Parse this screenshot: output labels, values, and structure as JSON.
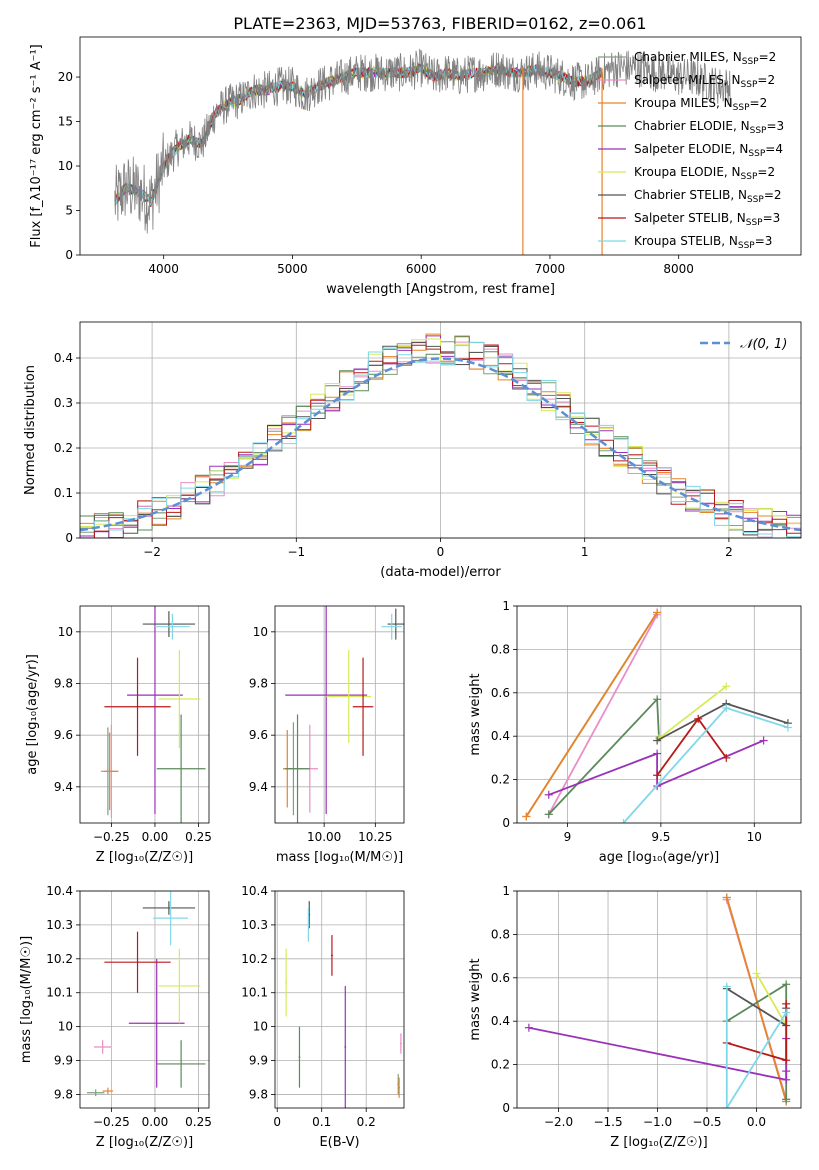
{
  "figure_title": "PLATE=2363, MJD=53763, FIBERID=0162, z=0.061",
  "models": [
    {
      "name": "Chabrier MILES",
      "nssp": "2",
      "color": "#7f9f7f"
    },
    {
      "name": "Salpeter MILES",
      "nssp": "2",
      "color": "#e88fc8"
    },
    {
      "name": "Kroupa MILES",
      "nssp": "2",
      "color": "#e8842a"
    },
    {
      "name": "Chabrier ELODIE",
      "nssp": "3",
      "color": "#5a8a5a"
    },
    {
      "name": "Salpeter ELODIE",
      "nssp": "4",
      "color": "#9a32b8"
    },
    {
      "name": "Kroupa ELODIE",
      "nssp": "2",
      "color": "#d8ea5a"
    },
    {
      "name": "Chabrier STELIB",
      "nssp": "2",
      "color": "#555555"
    },
    {
      "name": "Salpeter STELIB",
      "nssp": "3",
      "color": "#b81a1a"
    },
    {
      "name": "Kroupa STELIB",
      "nssp": "3",
      "color": "#7fd8e8"
    }
  ],
  "normal_label": "𝒩(0, 1)",
  "chart_data": [
    {
      "id": "spectrum",
      "type": "line",
      "xlabel": "wavelength [Angstrom, rest frame]",
      "ylabel": "Flux [f_λ10⁻¹⁷ erg cm⁻² s⁻¹ A⁻¹]",
      "xlim": [
        3350,
        8950
      ],
      "ylim": [
        0,
        24.5
      ],
      "xticks": [
        4000,
        5000,
        6000,
        7000,
        8000
      ],
      "yticks": [
        0,
        5,
        10,
        15,
        20
      ],
      "legend": "top-right",
      "continuum_x": [
        3620,
        3700,
        3800,
        3900,
        4000,
        4100,
        4200,
        4300,
        4400,
        4500,
        4600,
        4700,
        4800,
        4900,
        5000,
        5100,
        5200,
        5300,
        5400,
        5500,
        5600,
        5700,
        5800,
        5900,
        6000,
        6100,
        6200,
        6300,
        6400,
        6500,
        6600,
        6700,
        6800,
        6900,
        7000,
        7100,
        7200,
        7300,
        7400,
        7500,
        7600,
        7700,
        7800,
        7900,
        8000,
        8100,
        8200,
        8300,
        8400
      ],
      "continuum_y": [
        6.0,
        7.5,
        7.2,
        6.0,
        10.0,
        12.0,
        13.0,
        12.5,
        16.0,
        17.0,
        17.5,
        18.5,
        18.5,
        19.0,
        19.0,
        18.0,
        19.0,
        19.5,
        20.0,
        20.5,
        20.5,
        20.5,
        20.5,
        20.5,
        21.0,
        20.0,
        20.5,
        20.0,
        20.5,
        20.5,
        21.0,
        20.5,
        20.5,
        20.8,
        20.5,
        20.0,
        19.5,
        19.5,
        20.5,
        21.0,
        21.0,
        21.0,
        20.5,
        20.5,
        20.0,
        20.0,
        19.5,
        19.0,
        19.0
      ],
      "data_noise": 2.2,
      "models_end": 7400,
      "spikes": [
        {
          "x": 6790,
          "color": "#e8842a"
        },
        {
          "x": 7405,
          "color": "#e8842a"
        }
      ]
    },
    {
      "id": "residual_histogram",
      "type": "line",
      "xlabel": "(data-model)/error",
      "ylabel": "Normed distribution",
      "xlim": [
        -2.5,
        2.5
      ],
      "ylim": [
        0,
        0.48
      ],
      "xticks": [
        -2,
        -1,
        0,
        1,
        2
      ],
      "yticks": [
        0,
        0.1,
        0.2,
        0.3,
        0.4
      ],
      "legend": "top-right",
      "bin_width": 0.1,
      "reference_curve": "standard normal"
    },
    {
      "id": "age_vs_Z",
      "type": "scatter",
      "xlabel": "Z [log₁₀(Z/Z☉)]",
      "ylabel": "age  [log₁₀(age/yr)]",
      "xlim": [
        -0.43,
        0.31
      ],
      "ylim": [
        9.26,
        10.1
      ],
      "xticks": [
        -0.25,
        0.0,
        0.25
      ],
      "xticklabels": [
        "−0.25",
        "0.00",
        "0.25"
      ],
      "yticks": [
        9.4,
        9.6,
        9.8,
        10.0
      ],
      "crosses": [
        {
          "model": 0,
          "x": -0.27,
          "y": 9.46,
          "xerr": 0.02,
          "yerr": 0.17
        },
        {
          "model": 1,
          "x": -0.25,
          "y": 9.46,
          "xerr": 0.04,
          "yerr": 0.18
        },
        {
          "model": 2,
          "x": -0.26,
          "y": 9.46,
          "xerr": 0.05,
          "yerr": 0.15
        },
        {
          "model": 3,
          "x": 0.15,
          "y": 9.47,
          "xerr": 0.14,
          "yerr": 0.21
        },
        {
          "model": 4,
          "x": 0.0,
          "y": 9.755,
          "xerr": 0.16,
          "yerr": 0.46
        },
        {
          "model": 5,
          "x": 0.14,
          "y": 9.74,
          "xerr": 0.12,
          "yerr": 0.19
        },
        {
          "model": 6,
          "x": 0.08,
          "y": 10.03,
          "xerr": 0.15,
          "yerr": 0.05
        },
        {
          "model": 7,
          "x": -0.1,
          "y": 9.71,
          "xerr": 0.19,
          "yerr": 0.19
        },
        {
          "model": 8,
          "x": 0.1,
          "y": 10.02,
          "xerr": 0.1,
          "yerr": 0.05
        }
      ]
    },
    {
      "id": "age_vs_mass",
      "type": "scatter",
      "xlabel": "mass [log₁₀(M/M☉)]",
      "ylabel": "",
      "xlim": [
        9.76,
        10.39
      ],
      "ylim": [
        9.26,
        10.1
      ],
      "xticks": [
        10.0,
        10.25
      ],
      "xticklabels": [
        "10.00",
        "10.25"
      ],
      "yticks": [
        9.4,
        9.6,
        9.8,
        10.0
      ],
      "crosses": [
        {
          "model": 0,
          "x": 9.85,
          "y": 9.47,
          "xerr": 0.05,
          "yerr": 0.18
        },
        {
          "model": 1,
          "x": 9.93,
          "y": 9.47,
          "xerr": 0.04,
          "yerr": 0.17
        },
        {
          "model": 2,
          "x": 9.82,
          "y": 9.47,
          "xerr": 0.02,
          "yerr": 0.15
        },
        {
          "model": 3,
          "x": 9.87,
          "y": 9.47,
          "xerr": 0.06,
          "yerr": 0.21
        },
        {
          "model": 4,
          "x": 10.01,
          "y": 9.755,
          "xerr": 0.2,
          "yerr": 0.46
        },
        {
          "model": 5,
          "x": 10.12,
          "y": 9.75,
          "xerr": 0.11,
          "yerr": 0.18
        },
        {
          "model": 6,
          "x": 10.35,
          "y": 10.03,
          "xerr": 0.04,
          "yerr": 0.06
        },
        {
          "model": 7,
          "x": 10.19,
          "y": 9.71,
          "xerr": 0.05,
          "yerr": 0.19
        },
        {
          "model": 8,
          "x": 10.33,
          "y": 10.02,
          "xerr": 0.05,
          "yerr": 0.05
        }
      ]
    },
    {
      "id": "mass_weight_vs_age",
      "type": "line",
      "xlabel": "age  [log₁₀(age/yr)]",
      "ylabel": "mass weight",
      "xlim": [
        8.73,
        10.25
      ],
      "ylim": [
        0,
        1.0
      ],
      "xticks": [
        9.0,
        9.5,
        10.0
      ],
      "yticks": [
        0,
        0.2,
        0.4,
        0.6,
        0.8,
        1.0
      ],
      "series": [
        {
          "model": 0,
          "x": [
            8.78,
            9.48
          ],
          "y": [
            0.03,
            0.97
          ]
        },
        {
          "model": 1,
          "x": [
            8.9,
            9.48
          ],
          "y": [
            0.04,
            0.96
          ]
        },
        {
          "model": 2,
          "x": [
            8.78,
            9.48
          ],
          "y": [
            0.03,
            0.97
          ]
        },
        {
          "model": 3,
          "x": [
            8.9,
            9.48,
            9.49
          ],
          "y": [
            0.04,
            0.57,
            0.39
          ]
        },
        {
          "model": 4,
          "x": [
            8.9,
            9.48,
            9.48,
            10.05
          ],
          "y": [
            0.13,
            0.32,
            0.17,
            0.38
          ]
        },
        {
          "model": 5,
          "x": [
            9.49,
            9.85
          ],
          "y": [
            0.39,
            0.63
          ]
        },
        {
          "model": 6,
          "x": [
            9.48,
            9.85,
            10.18
          ],
          "y": [
            0.38,
            0.55,
            0.46
          ]
        },
        {
          "model": 7,
          "x": [
            9.48,
            9.7,
            9.85
          ],
          "y": [
            0.22,
            0.48,
            0.3
          ]
        },
        {
          "model": 8,
          "x": [
            9.3,
            9.85,
            10.18
          ],
          "y": [
            0.0,
            0.53,
            0.44
          ]
        }
      ]
    },
    {
      "id": "mass_vs_Z",
      "type": "scatter",
      "xlabel": "Z [log₁₀(Z/Z☉)]",
      "ylabel": "mass [log₁₀(M/M☉)]",
      "xlim": [
        -0.43,
        0.31
      ],
      "ylim": [
        9.76,
        10.4
      ],
      "xticks": [
        -0.25,
        0.0,
        0.25
      ],
      "xticklabels": [
        "−0.25",
        "0.00",
        "0.25"
      ],
      "yticks": [
        9.8,
        9.9,
        10.0,
        10.1,
        10.2,
        10.3,
        10.4
      ],
      "crosses": [
        {
          "model": 0,
          "x": -0.34,
          "y": 9.805,
          "xerr": 0.05,
          "yerr": 0.01
        },
        {
          "model": 1,
          "x": -0.3,
          "y": 9.94,
          "xerr": 0.05,
          "yerr": 0.02
        },
        {
          "model": 2,
          "x": -0.27,
          "y": 9.81,
          "xerr": 0.03,
          "yerr": 0.01
        },
        {
          "model": 3,
          "x": 0.15,
          "y": 9.89,
          "xerr": 0.14,
          "yerr": 0.07
        },
        {
          "model": 4,
          "x": 0.01,
          "y": 10.01,
          "xerr": 0.16,
          "yerr": 0.19
        },
        {
          "model": 5,
          "x": 0.14,
          "y": 10.12,
          "xerr": 0.12,
          "yerr": 0.11
        },
        {
          "model": 6,
          "x": 0.08,
          "y": 10.35,
          "xerr": 0.15,
          "yerr": 0.02
        },
        {
          "model": 7,
          "x": -0.1,
          "y": 10.19,
          "xerr": 0.19,
          "yerr": 0.09
        },
        {
          "model": 8,
          "x": 0.09,
          "y": 10.32,
          "xerr": 0.1,
          "yerr": 0.08
        }
      ]
    },
    {
      "id": "mass_vs_ebv",
      "type": "scatter",
      "xlabel": "E(B-V)",
      "ylabel": "",
      "xlim": [
        -0.005,
        0.285
      ],
      "ylim": [
        9.76,
        10.4
      ],
      "xticks": [
        0.0,
        0.1,
        0.2
      ],
      "yticks": [
        9.8,
        9.9,
        10.0,
        10.1,
        10.2,
        10.3,
        10.4
      ],
      "crosses": [
        {
          "model": 0,
          "x": 0.272,
          "y": 9.83,
          "xerr": 0.002,
          "yerr": 0.03
        },
        {
          "model": 1,
          "x": 0.278,
          "y": 9.95,
          "xerr": 0.002,
          "yerr": 0.03
        },
        {
          "model": 2,
          "x": 0.274,
          "y": 9.82,
          "xerr": 0.002,
          "yerr": 0.03
        },
        {
          "model": 3,
          "x": 0.05,
          "y": 9.91,
          "xerr": 0.002,
          "yerr": 0.09
        },
        {
          "model": 4,
          "x": 0.153,
          "y": 9.94,
          "xerr": 0.002,
          "yerr": 0.18
        },
        {
          "model": 5,
          "x": 0.02,
          "y": 10.13,
          "xerr": 0.002,
          "yerr": 0.1
        },
        {
          "model": 6,
          "x": 0.072,
          "y": 10.33,
          "xerr": 0.002,
          "yerr": 0.04
        },
        {
          "model": 7,
          "x": 0.123,
          "y": 10.21,
          "xerr": 0.002,
          "yerr": 0.06
        },
        {
          "model": 8,
          "x": 0.07,
          "y": 10.3,
          "xerr": 0.002,
          "yerr": 0.05
        }
      ]
    },
    {
      "id": "mass_weight_vs_Z",
      "type": "line",
      "xlabel": "Z [log₁₀(Z/Z☉)]",
      "ylabel": "mass weight",
      "xlim": [
        -2.42,
        0.45
      ],
      "ylim": [
        0,
        1.0
      ],
      "xticks": [
        -2.0,
        -1.5,
        -1.0,
        -0.5,
        0.0
      ],
      "xticklabels": [
        "−2.0",
        "−1.5",
        "−1.0",
        "−0.5",
        "0.0"
      ],
      "yticks": [
        0,
        0.2,
        0.4,
        0.6,
        0.8,
        1.0
      ],
      "series": [
        {
          "model": 0,
          "x": [
            -0.3,
            0.3
          ],
          "y": [
            0.97,
            0.03
          ]
        },
        {
          "model": 1,
          "x": [
            -0.3,
            0.3
          ],
          "y": [
            0.96,
            0.04
          ]
        },
        {
          "model": 2,
          "x": [
            -0.3,
            0.3
          ],
          "y": [
            0.97,
            0.03
          ]
        },
        {
          "model": 3,
          "x": [
            -0.3,
            0.3,
            0.3
          ],
          "y": [
            0.4,
            0.57,
            0.04
          ]
        },
        {
          "model": 4,
          "x": [
            -2.3,
            0.3,
            0.3,
            0.3
          ],
          "y": [
            0.37,
            0.13,
            0.32,
            0.17
          ]
        },
        {
          "model": 5,
          "x": [
            0.0,
            0.3
          ],
          "y": [
            0.62,
            0.38
          ]
        },
        {
          "model": 6,
          "x": [
            -0.3,
            0.3,
            0.3
          ],
          "y": [
            0.55,
            0.38,
            0.46
          ]
        },
        {
          "model": 7,
          "x": [
            -0.3,
            0.3,
            0.3
          ],
          "y": [
            0.3,
            0.22,
            0.48
          ]
        },
        {
          "model": 8,
          "x": [
            -0.3,
            -0.3,
            0.3
          ],
          "y": [
            0.56,
            0.0,
            0.44
          ]
        }
      ]
    }
  ]
}
